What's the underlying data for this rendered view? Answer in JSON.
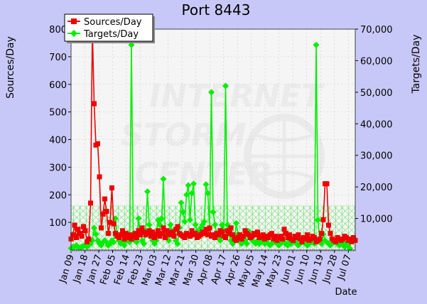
{
  "chart_data": {
    "type": "line",
    "title": "Port 8443",
    "xlabel": "Date",
    "ylabel_left": "Sources/Day",
    "ylabel_right": "Targets/Day",
    "ylim_left": [
      0,
      800
    ],
    "ylim_right": [
      0,
      70000
    ],
    "yticks_left": [
      "100",
      "200",
      "300",
      "400",
      "500",
      "600",
      "700",
      "800"
    ],
    "yticks_right": [
      "10,000",
      "20,000",
      "30,000",
      "40,000",
      "50,000",
      "60,000",
      "70,000"
    ],
    "x_tick_labels": [
      "Jan 09",
      "Jan 18",
      "Jan 27",
      "Feb 05",
      "Feb 14",
      "Feb 23",
      "Mar 03",
      "Mar 12",
      "Mar 21",
      "Mar 30",
      "Apr 08",
      "Apr 17",
      "Apr 26",
      "May 05",
      "May 14",
      "May 23",
      "Jun 01",
      "Jun 10",
      "Jun 19",
      "Jun 28",
      "Jul 07"
    ],
    "grid": true,
    "legend_position": "top-left",
    "series": [
      {
        "name": "Sources/Day",
        "axis": "left",
        "color": "#ee0000",
        "marker": "square",
        "values": [
          40,
          55,
          90,
          45,
          75,
          60,
          50,
          85,
          70,
          30,
          40,
          170,
          800,
          530,
          380,
          385,
          265,
          80,
          130,
          185,
          140,
          60,
          100,
          225,
          95,
          60,
          50,
          45,
          55,
          70,
          40,
          60,
          45,
          55,
          40,
          50,
          60,
          45,
          70,
          55,
          80,
          65,
          55,
          60,
          70,
          50,
          65,
          45,
          55,
          70,
          50,
          60,
          80,
          45,
          70,
          60,
          55,
          65,
          50,
          75,
          85,
          60,
          55,
          50,
          45,
          60,
          55,
          50,
          70,
          55,
          60,
          45,
          50,
          55,
          65,
          60,
          75,
          55,
          80,
          50,
          55,
          45,
          60,
          55,
          70,
          65,
          50,
          45,
          70,
          60,
          80,
          55,
          40,
          35,
          45,
          55,
          40,
          50,
          70,
          60,
          55,
          45,
          50,
          60,
          55,
          65,
          45,
          50,
          55,
          40,
          50,
          45,
          55,
          60,
          40,
          50,
          35,
          45,
          50,
          40,
          75,
          60,
          45,
          55,
          40,
          35,
          50,
          45,
          55,
          40,
          30,
          45,
          40,
          55,
          35,
          40,
          50,
          45,
          30,
          35,
          40,
          60,
          110,
          240,
          240,
          90,
          60,
          40,
          35,
          30,
          45,
          40,
          35,
          40,
          50,
          45,
          35,
          40,
          30,
          45,
          35
        ]
      },
      {
        "name": "Targets/Day",
        "axis": "right",
        "color": "#00ee00",
        "marker": "diamond",
        "values": [
          500,
          1000,
          1000,
          1500,
          800,
          700,
          1000,
          1200,
          1500,
          1000,
          1500,
          2000,
          3000,
          7000,
          5000,
          3000,
          2000,
          1500,
          2500,
          3000,
          2500,
          1500,
          2000,
          3000,
          2500,
          10000,
          5000,
          3000,
          2000,
          2500,
          1500,
          3000,
          4000,
          2500,
          65000,
          5000,
          3000,
          2500,
          10000,
          5000,
          3000,
          2000,
          6000,
          18500,
          8000,
          5000,
          3000,
          2000,
          3000,
          9500,
          8000,
          10000,
          22500,
          6000,
          5000,
          3000,
          8000,
          6000,
          5000,
          3000,
          2000,
          7000,
          15000,
          12000,
          9000,
          17500,
          20500,
          9500,
          18000,
          21000,
          8000,
          6000,
          5000,
          7000,
          8000,
          9000,
          20800,
          18000,
          7000,
          50000,
          12000,
          8000,
          5000,
          4000,
          3000,
          8000,
          6000,
          52000,
          8000,
          5000,
          3000,
          2000,
          3000,
          8500,
          5000,
          3000,
          2000,
          2500,
          3000,
          2000,
          6000,
          4000,
          3000,
          2500,
          2000,
          3000,
          2000,
          3500,
          2500,
          2000,
          3000,
          2000,
          1500,
          2000,
          3000,
          2500,
          2000,
          1500,
          2000,
          3000,
          2500,
          2000,
          1500,
          3000,
          2000,
          2500,
          3000,
          2000,
          1500,
          2000,
          2500,
          3000,
          2000,
          1500,
          2000,
          2500,
          3000,
          2000,
          65000,
          9500,
          3000,
          2000,
          5000,
          3000,
          2500,
          2000,
          1500,
          2000,
          3000,
          2500,
          2000,
          1500,
          2000,
          2500,
          1000,
          2000,
          1500,
          500
        ]
      }
    ]
  }
}
